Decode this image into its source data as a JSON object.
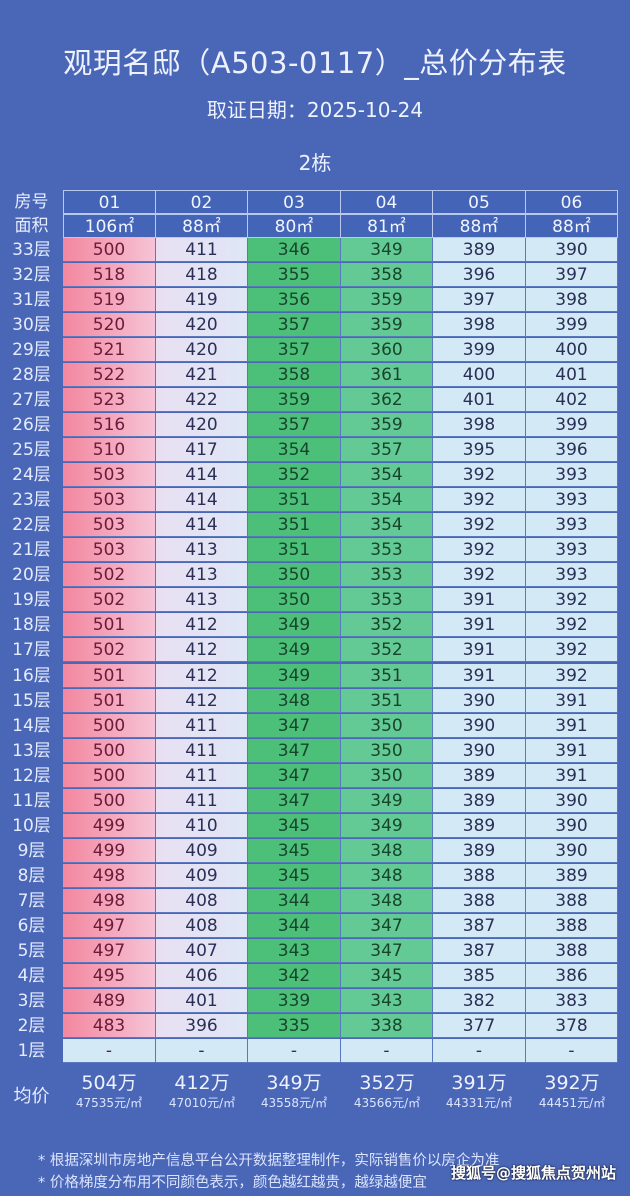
{
  "title": "观玥名邸（A503-0117）_总价分布表",
  "date": "取证日期：2025-10-24",
  "building": "2栋",
  "header": {
    "room_label": "房号",
    "area_label": "面积",
    "rooms": [
      "01",
      "02",
      "03",
      "04",
      "05",
      "06"
    ],
    "areas": [
      "106㎡",
      "88㎡",
      "80㎡",
      "81㎡",
      "88㎡",
      "88㎡"
    ]
  },
  "rows": [
    {
      "floor": "33层",
      "prices": [
        "500",
        "411",
        "346",
        "349",
        "389",
        "390"
      ]
    },
    {
      "floor": "32层",
      "prices": [
        "518",
        "418",
        "355",
        "358",
        "396",
        "397"
      ]
    },
    {
      "floor": "31层",
      "prices": [
        "519",
        "419",
        "356",
        "359",
        "397",
        "398"
      ]
    },
    {
      "floor": "30层",
      "prices": [
        "520",
        "420",
        "357",
        "359",
        "398",
        "399"
      ]
    },
    {
      "floor": "29层",
      "prices": [
        "521",
        "420",
        "357",
        "360",
        "399",
        "400"
      ]
    },
    {
      "floor": "28层",
      "prices": [
        "522",
        "421",
        "358",
        "361",
        "400",
        "401"
      ]
    },
    {
      "floor": "27层",
      "prices": [
        "523",
        "422",
        "359",
        "362",
        "401",
        "402"
      ]
    },
    {
      "floor": "26层",
      "prices": [
        "516",
        "420",
        "357",
        "359",
        "398",
        "399"
      ]
    },
    {
      "floor": "25层",
      "prices": [
        "510",
        "417",
        "354",
        "357",
        "395",
        "396"
      ]
    },
    {
      "floor": "24层",
      "prices": [
        "503",
        "414",
        "352",
        "354",
        "392",
        "393"
      ]
    },
    {
      "floor": "23层",
      "prices": [
        "503",
        "414",
        "351",
        "354",
        "392",
        "393"
      ]
    },
    {
      "floor": "22层",
      "prices": [
        "503",
        "414",
        "351",
        "354",
        "392",
        "393"
      ]
    },
    {
      "floor": "21层",
      "prices": [
        "503",
        "413",
        "351",
        "353",
        "392",
        "393"
      ]
    },
    {
      "floor": "20层",
      "prices": [
        "502",
        "413",
        "350",
        "353",
        "392",
        "393"
      ]
    },
    {
      "floor": "19层",
      "prices": [
        "502",
        "413",
        "350",
        "353",
        "391",
        "392"
      ]
    },
    {
      "floor": "18层",
      "prices": [
        "501",
        "412",
        "349",
        "352",
        "391",
        "392"
      ]
    },
    {
      "floor": "17层",
      "prices": [
        "502",
        "412",
        "349",
        "352",
        "391",
        "392"
      ]
    },
    {
      "floor": "16层",
      "prices": [
        "501",
        "412",
        "349",
        "351",
        "391",
        "392"
      ]
    },
    {
      "floor": "15层",
      "prices": [
        "501",
        "412",
        "348",
        "351",
        "390",
        "391"
      ]
    },
    {
      "floor": "14层",
      "prices": [
        "500",
        "411",
        "347",
        "350",
        "390",
        "391"
      ]
    },
    {
      "floor": "13层",
      "prices": [
        "500",
        "411",
        "347",
        "350",
        "390",
        "391"
      ]
    },
    {
      "floor": "12层",
      "prices": [
        "500",
        "411",
        "347",
        "350",
        "389",
        "391"
      ]
    },
    {
      "floor": "11层",
      "prices": [
        "500",
        "411",
        "347",
        "349",
        "389",
        "390"
      ]
    },
    {
      "floor": "10层",
      "prices": [
        "499",
        "410",
        "345",
        "349",
        "389",
        "390"
      ]
    },
    {
      "floor": "9层",
      "prices": [
        "499",
        "409",
        "345",
        "348",
        "389",
        "390"
      ]
    },
    {
      "floor": "8层",
      "prices": [
        "498",
        "409",
        "345",
        "348",
        "388",
        "389"
      ]
    },
    {
      "floor": "7层",
      "prices": [
        "498",
        "408",
        "344",
        "348",
        "388",
        "388"
      ]
    },
    {
      "floor": "6层",
      "prices": [
        "497",
        "408",
        "344",
        "347",
        "387",
        "388"
      ]
    },
    {
      "floor": "5层",
      "prices": [
        "497",
        "407",
        "343",
        "347",
        "387",
        "388"
      ]
    },
    {
      "floor": "4层",
      "prices": [
        "495",
        "406",
        "342",
        "345",
        "385",
        "386"
      ]
    },
    {
      "floor": "3层",
      "prices": [
        "489",
        "401",
        "339",
        "343",
        "382",
        "383"
      ]
    },
    {
      "floor": "2层",
      "prices": [
        "483",
        "396",
        "335",
        "338",
        "377",
        "378"
      ]
    },
    {
      "floor": "1层",
      "prices": [
        "-",
        "-",
        "-",
        "-",
        "-",
        "-"
      ]
    }
  ],
  "average": {
    "label": "均价",
    "totals": [
      "504万",
      "412万",
      "349万",
      "352万",
      "391万",
      "392万"
    ],
    "unit_prices": [
      "47535元/㎡",
      "47010元/㎡",
      "43558元/㎡",
      "43566元/㎡",
      "44331元/㎡",
      "44451元/㎡"
    ]
  },
  "notes": [
    "* 根据深圳市房地产信息平台公开数据整理制作，实际销售价以房企为准",
    "* 价格梯度分布用不同颜色表示，颜色越红越贵，越绿越便宜"
  ],
  "watermark": "搜狐号@搜狐焦点贺州站",
  "colors": {
    "background": "#4a66b6",
    "expensive": "#f3879f",
    "cheap": "#4cbf79"
  }
}
